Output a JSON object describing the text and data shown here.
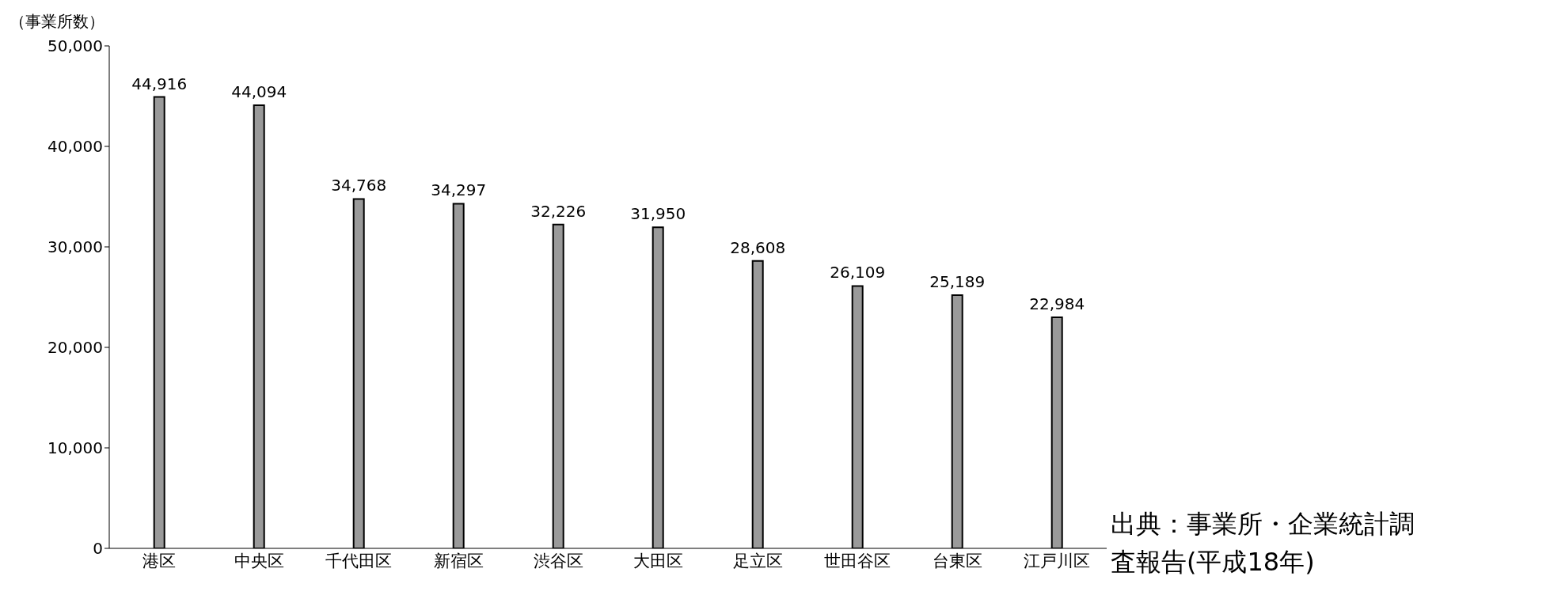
{
  "chart_data": {
    "type": "bar",
    "ylabel": "（事業所数）",
    "categories": [
      "港区",
      "中央区",
      "千代田区",
      "新宿区",
      "渋谷区",
      "大田区",
      "足立区",
      "世田谷区",
      "台東区",
      "江戸川区"
    ],
    "values": [
      44916,
      44094,
      34768,
      34297,
      32226,
      31950,
      28608,
      26109,
      25189,
      22984
    ],
    "value_labels": [
      "44,916",
      "44,094",
      "34,768",
      "34,297",
      "32,226",
      "31,950",
      "28,608",
      "26,109",
      "25,189",
      "22,984"
    ],
    "color": "#9a9a9a",
    "ylim": [
      0,
      50000
    ],
    "yticks": [
      {
        "value": 0,
        "label": "0"
      },
      {
        "value": 10000,
        "label": "10,000"
      },
      {
        "value": 20000,
        "label": "20,000"
      },
      {
        "value": 30000,
        "label": "30,000"
      },
      {
        "value": 40000,
        "label": "40,000"
      },
      {
        "value": 50000,
        "label": "50,000"
      }
    ],
    "grid": false,
    "legend": false,
    "annotations": [
      "出典：事業所・企業統計調査報告(平成18年)"
    ]
  }
}
